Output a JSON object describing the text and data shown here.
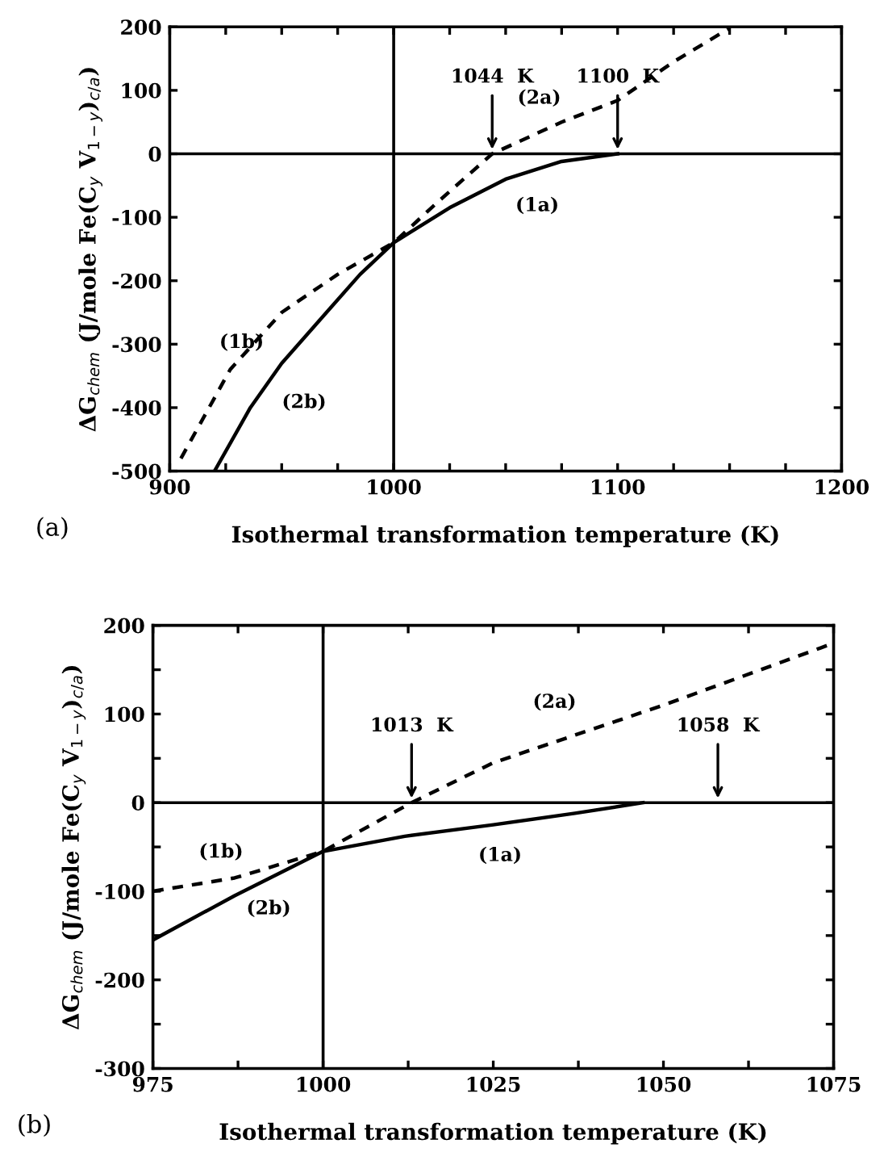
{
  "chart_data": [
    {
      "type": "line",
      "xlabel": "Isothermal transformation temperature (K)",
      "ylabel": "ΔG$_{chem}$ (J/mole Fe(C$_{y}$ V$_{1−y}$)$_{c/a}$)",
      "xlim": [
        900,
        1200
      ],
      "ylim": [
        -500,
        200
      ],
      "xticks": [
        900,
        {
          "value": 925,
          "label": null
        },
        {
          "value": 950,
          "label": null
        },
        {
          "value": 975,
          "label": null
        },
        1000,
        {
          "value": 1025,
          "label": null
        },
        {
          "value": 1050,
          "label": null
        },
        {
          "value": 1075,
          "label": null
        },
        1100,
        {
          "value": 1125,
          "label": null
        },
        {
          "value": 1150,
          "label": null
        },
        {
          "value": 1175,
          "label": null
        },
        1200
      ],
      "yticks": [
        -500,
        -400,
        -300,
        -200,
        -100,
        0,
        100,
        200
      ],
      "grid": false,
      "marker": "none",
      "series": [
        {
          "color": "#000000",
          "line_style": "solid",
          "x": [
            920,
            936,
            950,
            970,
            985,
            1000,
            1025,
            1050,
            1075,
            1100
          ],
          "values": [
            -500,
            -400,
            -330,
            -250,
            -190,
            -140,
            -85,
            -40,
            -12,
            0
          ]
        },
        {
          "color": "#000000",
          "line_style": "dashed",
          "x": [
            905,
            927,
            950,
            975,
            1000,
            1020,
            1044,
            1075,
            1100,
            1125,
            1150
          ],
          "values": [
            -480,
            -340,
            -250,
            -190,
            -140,
            -75,
            0,
            50,
            84,
            145,
            198
          ]
        }
      ],
      "ref_lines": [
        {
          "axis": "y",
          "value": 0,
          "color": "#000000"
        },
        {
          "axis": "x",
          "value": 1000,
          "color": "#000000"
        }
      ],
      "annotations": [
        "(a)",
        {
          "text": "1044  K",
          "x": 1044,
          "y": 0
        },
        {
          "text": "1100  K",
          "x": 1100,
          "y": 0
        },
        "(2a)",
        "(1a)",
        "(1b)",
        "(2b)"
      ]
    },
    {
      "type": "line",
      "xlabel": "Isothermal transformation temperature (K)",
      "ylabel": "ΔG$_{chem}$ (J/mole Fe(C$_{y}$ V$_{1−y}$)$_{c/a}$)",
      "xlim": [
        975,
        1075
      ],
      "ylim": [
        -300,
        200
      ],
      "xticks": [
        975,
        {
          "value": 987.5,
          "label": null
        },
        1000,
        {
          "value": 1012.5,
          "label": null
        },
        1025,
        {
          "value": 1037.5,
          "label": null
        },
        1050,
        {
          "value": 1062.5,
          "label": null
        },
        1075
      ],
      "yticks": [
        -300,
        {
          "value": -250,
          "label": null
        },
        -200,
        {
          "value": -150,
          "label": null
        },
        -100,
        {
          "value": -50,
          "label": null
        },
        0,
        {
          "value": 50,
          "label": null
        },
        100,
        {
          "value": 150,
          "label": null
        },
        200
      ],
      "grid": false,
      "marker": "none",
      "series": [
        {
          "color": "#000000",
          "line_style": "solid",
          "x": [
            975,
            987,
            1000,
            1012,
            1025,
            1037,
            1047
          ],
          "values": [
            -155,
            -105,
            -55,
            -38,
            -25,
            -12,
            0
          ]
        },
        {
          "color": "#000000",
          "line_style": "dashed",
          "x": [
            975,
            987,
            1000,
            1013,
            1025,
            1050,
            1075
          ],
          "values": [
            -100,
            -85,
            -55,
            0,
            45,
            110,
            180
          ]
        }
      ],
      "ref_lines": [
        {
          "axis": "y",
          "value": 0,
          "color": "#000000"
        },
        {
          "axis": "x",
          "value": 1000,
          "color": "#000000"
        }
      ],
      "annotations": [
        "(b)",
        {
          "text": "1013  K",
          "x": 1013,
          "y": 0
        },
        {
          "text": "1058  K",
          "x": 1058,
          "y": 0
        },
        "(2a)",
        "(1a)",
        "(1b)",
        "(2b)"
      ]
    }
  ]
}
